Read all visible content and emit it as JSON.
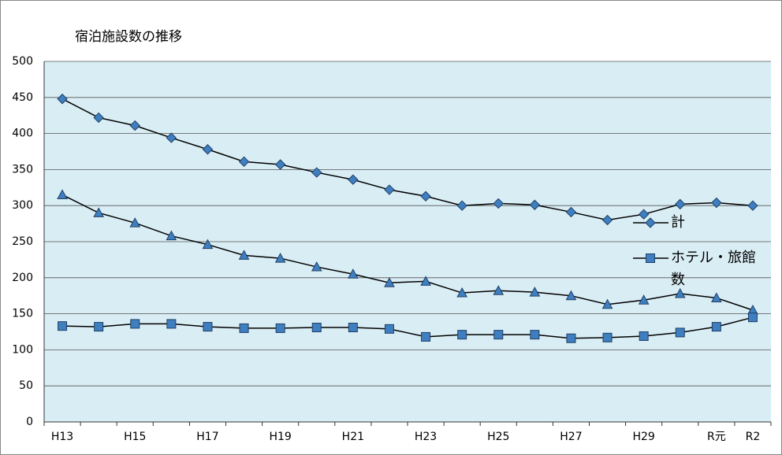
{
  "chart_data": {
    "type": "line",
    "title": "宿泊施設数の推移",
    "categories": [
      "H13",
      null,
      "H15",
      null,
      "H17",
      null,
      "H19",
      null,
      "H21",
      null,
      "H23",
      null,
      "H25",
      null,
      "H27",
      null,
      "H29",
      null,
      "R元",
      "R2"
    ],
    "series": [
      {
        "name": "計",
        "color": "#3f7fc0",
        "marker": "diamond",
        "values": [
          448,
          422,
          411,
          394,
          378,
          361,
          357,
          346,
          336,
          322,
          313,
          300,
          303,
          301,
          291,
          280,
          288,
          302,
          304,
          300
        ]
      },
      {
        "color": "#3f7fc0",
        "marker": "triangle",
        "values": [
          315,
          290,
          276,
          258,
          246,
          231,
          227,
          215,
          205,
          193,
          195,
          179,
          182,
          180,
          175,
          163,
          169,
          178,
          172,
          155
        ]
      },
      {
        "name": "ホテル・旅館数",
        "color": "#3f7fc0",
        "marker": "square",
        "values": [
          133,
          132,
          136,
          136,
          132,
          130,
          130,
          131,
          131,
          129,
          118,
          121,
          121,
          121,
          116,
          117,
          119,
          124,
          132,
          145
        ]
      }
    ],
    "ylim": [
      0,
      500
    ],
    "yticks": [
      0,
      50,
      100,
      150,
      200,
      250,
      300,
      350,
      400,
      450,
      500
    ],
    "grid": true
  }
}
